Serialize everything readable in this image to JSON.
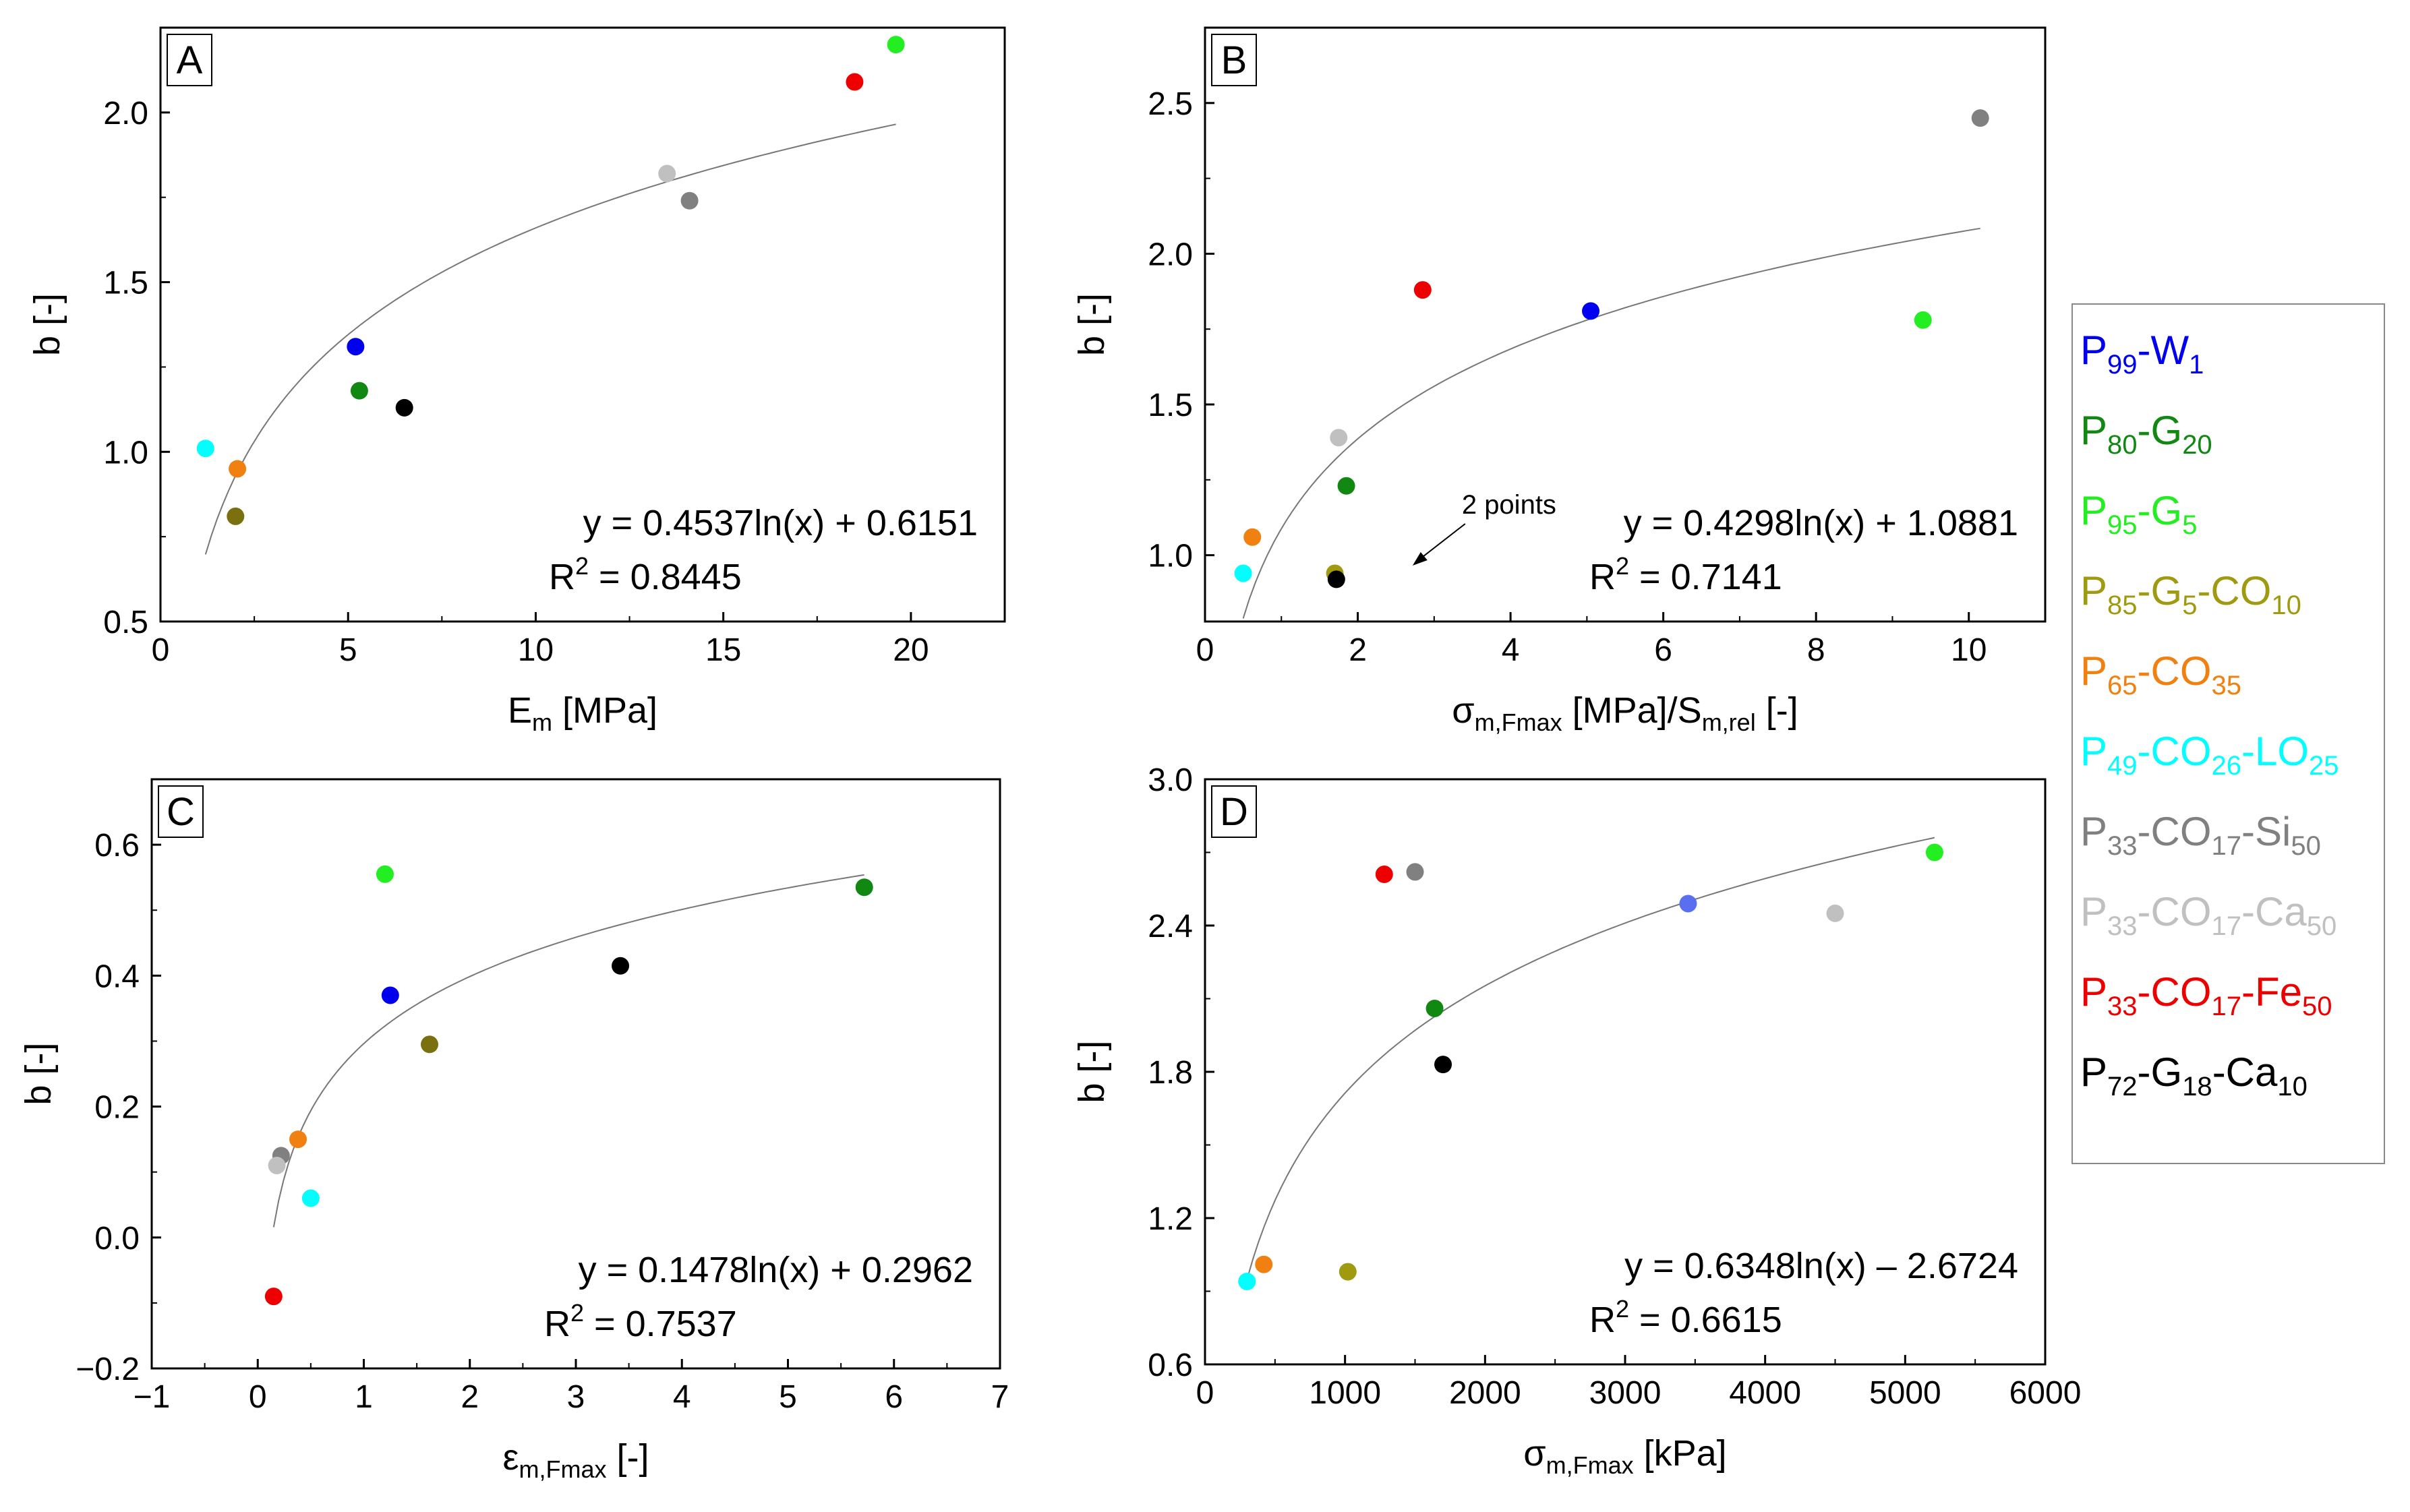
{
  "chart_data": [
    {
      "type": "scatter",
      "panel_label": "A",
      "xlabel": "E",
      "xlabel_sub": "m",
      "xlabel_tail": " [MPa]",
      "ylabel": "b [-]",
      "xlim": [
        0,
        22.5
      ],
      "ylim": [
        0.5,
        2.25
      ],
      "xticks": [
        0,
        5,
        10,
        15,
        20
      ],
      "xtick_labels": [
        "0",
        "5",
        "10",
        "15",
        "20"
      ],
      "yticks": [
        0.5,
        1.0,
        1.5,
        2.0
      ],
      "ytick_labels": [
        "0.5",
        "1.0",
        "1.5",
        "2.0"
      ],
      "points": [
        {
          "series": "P99-W1",
          "x": 5.2,
          "y": 1.31
        },
        {
          "series": "P80-G20",
          "x": 5.3,
          "y": 1.18
        },
        {
          "series": "P95-G5",
          "x": 19.6,
          "y": 2.2
        },
        {
          "series": "P85-G5-CO10",
          "x": 2.0,
          "y": 0.81
        },
        {
          "series": "P65-CO35",
          "x": 2.05,
          "y": 0.95
        },
        {
          "series": "P49-CO26-LO25",
          "x": 1.2,
          "y": 1.01
        },
        {
          "series": "P33-CO17-Si50",
          "x": 14.1,
          "y": 1.74
        },
        {
          "series": "P33-CO17-Ca50",
          "x": 13.5,
          "y": 1.82
        },
        {
          "series": "P33-CO17-Fe50",
          "x": 18.5,
          "y": 2.09
        },
        {
          "series": "P72-G18-Ca10",
          "x": 6.5,
          "y": 1.13
        }
      ],
      "fit": {
        "a": 0.4537,
        "b": 0.6151,
        "x_from": 1.2,
        "x_to": 19.6
      },
      "equation": "y = 0.4537ln(x) + 0.6151",
      "r2_label": "R",
      "r2_sup": "2",
      "r2_value": " = 0.8445"
    },
    {
      "type": "scatter",
      "panel_label": "B",
      "xlabel": "σ",
      "xlabel_sub": "m,Fmax",
      "xlabel_tail": " [MPa]/S",
      "xlabel_sub2": "m,rel",
      "xlabel_tail2": " [-]",
      "ylabel": "b [-]",
      "xlim": [
        0,
        11
      ],
      "ylim": [
        0.78,
        2.75
      ],
      "xticks": [
        0,
        2,
        4,
        6,
        8,
        10
      ],
      "xtick_labels": [
        "0",
        "2",
        "4",
        "6",
        "8",
        "10"
      ],
      "yticks": [
        1.0,
        1.5,
        2.0,
        2.5
      ],
      "ytick_labels": [
        "1.0",
        "1.5",
        "2.0",
        "2.5"
      ],
      "points": [
        {
          "series": "P99-W1",
          "x": 5.05,
          "y": 1.81
        },
        {
          "series": "P80-G20",
          "x": 1.85,
          "y": 1.23
        },
        {
          "series": "P95-G5",
          "x": 9.4,
          "y": 1.78
        },
        {
          "series": "P85-G5-CO10",
          "x": 1.7,
          "y": 0.94
        },
        {
          "series": "P65-CO35",
          "x": 0.62,
          "y": 1.06
        },
        {
          "series": "P49-CO26-LO25",
          "x": 0.5,
          "y": 0.94
        },
        {
          "series": "P33-CO17-Si50",
          "x": 10.15,
          "y": 2.45
        },
        {
          "series": "P33-CO17-Ca50",
          "x": 1.75,
          "y": 1.39
        },
        {
          "series": "P33-CO17-Fe50",
          "x": 2.85,
          "y": 1.88
        },
        {
          "series": "P72-G18-Ca10",
          "x": 1.72,
          "y": 0.92
        }
      ],
      "fit": {
        "a": 0.4298,
        "b": 1.0881,
        "x_from": 0.5,
        "x_to": 10.15
      },
      "equation": "y = 0.4298ln(x) + 1.0881",
      "r2_label": "R",
      "r2_sup": "2",
      "r2_value": " = 0.7141",
      "annotation": "2 points",
      "annotation_target": {
        "x": 2.7,
        "y": 0.97
      }
    },
    {
      "type": "scatter",
      "panel_label": "C",
      "xlabel": "ε",
      "xlabel_sub": "m,Fmax",
      "xlabel_tail": " [-]",
      "ylabel": "b [-]",
      "xlim": [
        -1,
        7
      ],
      "ylim": [
        -0.2,
        0.7
      ],
      "xticks": [
        -1,
        0,
        1,
        2,
        3,
        4,
        5,
        6,
        7
      ],
      "xtick_labels": [
        "−1",
        "0",
        "1",
        "2",
        "3",
        "4",
        "5",
        "6",
        "7"
      ],
      "yticks": [
        -0.2,
        0.0,
        0.2,
        0.4,
        0.6
      ],
      "ytick_labels": [
        "−0.2",
        "0.0",
        "0.2",
        "0.4",
        "0.6"
      ],
      "points": [
        {
          "series": "P99-W1",
          "x": 1.25,
          "y": 0.37
        },
        {
          "series": "P80-G20",
          "x": 5.72,
          "y": 0.535
        },
        {
          "series": "P95-G5",
          "x": 1.2,
          "y": 0.555
        },
        {
          "series": "P85-G5-CO10",
          "x": 1.62,
          "y": 0.295
        },
        {
          "series": "P65-CO35",
          "x": 0.38,
          "y": 0.15
        },
        {
          "series": "P49-CO26-LO25",
          "x": 0.5,
          "y": 0.06
        },
        {
          "series": "P33-CO17-Si50",
          "x": 0.22,
          "y": 0.125
        },
        {
          "series": "P33-CO17-Ca50",
          "x": 0.18,
          "y": 0.11
        },
        {
          "series": "P33-CO17-Fe50",
          "x": 0.15,
          "y": -0.09
        },
        {
          "series": "P72-G18-Ca10",
          "x": 3.42,
          "y": 0.415
        }
      ],
      "fit": {
        "a": 0.1478,
        "b": 0.2962,
        "x_from": 0.15,
        "x_to": 5.72
      },
      "equation": "y = 0.1478ln(x) + 0.2962",
      "r2_label": "R",
      "r2_sup": "2",
      "r2_value": " = 0.7537"
    },
    {
      "type": "scatter",
      "panel_label": "D",
      "xlabel": "σ",
      "xlabel_sub": "m,Fmax",
      "xlabel_tail": " [kPa]",
      "ylabel": "b [-]",
      "xlim": [
        0,
        6000
      ],
      "ylim": [
        0.6,
        3.0
      ],
      "xticks": [
        0,
        1000,
        2000,
        3000,
        4000,
        5000,
        6000
      ],
      "xtick_labels": [
        "0",
        "1000",
        "2000",
        "3000",
        "4000",
        "5000",
        "6000"
      ],
      "yticks": [
        0.6,
        1.2,
        1.8,
        2.4,
        3.0
      ],
      "ytick_labels": [
        "0.6",
        "1.2",
        "1.8",
        "2.4",
        "3.0"
      ],
      "points": [
        {
          "series": "P99-W1",
          "x": 3450,
          "y": 2.49
        },
        {
          "series": "P80-G20",
          "x": 1640,
          "y": 2.06
        },
        {
          "series": "P95-G5",
          "x": 5210,
          "y": 2.7
        },
        {
          "series": "P85-G5-CO10",
          "x": 1020,
          "y": 0.98
        },
        {
          "series": "P65-CO35",
          "x": 420,
          "y": 1.01
        },
        {
          "series": "P49-CO26-LO25",
          "x": 300,
          "y": 0.94
        },
        {
          "series": "P33-CO17-Si50",
          "x": 1500,
          "y": 2.62
        },
        {
          "series": "P33-CO17-Ca50",
          "x": 4500,
          "y": 2.45
        },
        {
          "series": "P33-CO17-Fe50",
          "x": 1280,
          "y": 2.61
        },
        {
          "series": "P72-G18-Ca10",
          "x": 1700,
          "y": 1.83
        }
      ],
      "fit": {
        "a": 0.6348,
        "b": -2.6724,
        "x_from": 300,
        "x_to": 5210
      },
      "equation": "y = 0.6348ln(x) – 2.6724",
      "r2_label": "R",
      "r2_sup": "2",
      "r2_value": " = 0.6615"
    }
  ],
  "legend": [
    {
      "id": "P99-W1",
      "color": "#0000ee",
      "parts": [
        [
          "P",
          ""
        ],
        [
          "99",
          "sub"
        ],
        [
          "-W",
          ""
        ],
        [
          "1",
          "sub"
        ]
      ]
    },
    {
      "id": "P80-G20",
      "color": "#118811",
      "parts": [
        [
          "P",
          ""
        ],
        [
          "80",
          "sub"
        ],
        [
          "-G",
          ""
        ],
        [
          "20",
          "sub"
        ]
      ]
    },
    {
      "id": "P95-G5",
      "color": "#22ee22",
      "parts": [
        [
          "P",
          ""
        ],
        [
          "95",
          "sub"
        ],
        [
          "-G",
          ""
        ],
        [
          "5",
          "sub"
        ]
      ]
    },
    {
      "id": "P85-G5-CO10",
      "color": "#a09a10",
      "parts": [
        [
          "P",
          ""
        ],
        [
          "85",
          "sub"
        ],
        [
          "-G",
          ""
        ],
        [
          "5",
          "sub"
        ],
        [
          "-CO",
          ""
        ],
        [
          "10",
          "sub"
        ]
      ]
    },
    {
      "id": "P65-CO35",
      "color": "#f08010",
      "parts": [
        [
          "P",
          ""
        ],
        [
          "65",
          "sub"
        ],
        [
          "-CO",
          ""
        ],
        [
          "35",
          "sub"
        ]
      ]
    },
    {
      "id": "P49-CO26-LO25",
      "color": "#00ffff",
      "parts": [
        [
          "P",
          ""
        ],
        [
          "49",
          "sub"
        ],
        [
          "-CO",
          ""
        ],
        [
          "26",
          "sub"
        ],
        [
          "-LO",
          ""
        ],
        [
          "25",
          "sub"
        ]
      ]
    },
    {
      "id": "P33-CO17-Si50",
      "color": "#808080",
      "parts": [
        [
          "P",
          ""
        ],
        [
          "33",
          "sub"
        ],
        [
          "-CO",
          ""
        ],
        [
          "17",
          "sub"
        ],
        [
          "-Si",
          ""
        ],
        [
          "50",
          "sub"
        ]
      ]
    },
    {
      "id": "P33-CO17-Ca50",
      "color": "#c0c0c0",
      "parts": [
        [
          "P",
          ""
        ],
        [
          "33",
          "sub"
        ],
        [
          "-CO",
          ""
        ],
        [
          "17",
          "sub"
        ],
        [
          "-Ca",
          ""
        ],
        [
          "50",
          "sub"
        ]
      ]
    },
    {
      "id": "P33-CO17-Fe50",
      "color": "#ee0000",
      "parts": [
        [
          "P",
          ""
        ],
        [
          "33",
          "sub"
        ],
        [
          "-CO",
          ""
        ],
        [
          "17",
          "sub"
        ],
        [
          "-Fe",
          ""
        ],
        [
          "50",
          "sub"
        ]
      ]
    },
    {
      "id": "P72-G18-Ca10",
      "color": "#000000",
      "parts": [
        [
          "P",
          ""
        ],
        [
          "72",
          "sub"
        ],
        [
          "-G",
          ""
        ],
        [
          "18",
          "sub"
        ],
        [
          "-Ca",
          ""
        ],
        [
          "10",
          "sub"
        ]
      ]
    }
  ],
  "overrides": {
    "P85-G5-CO10_panelC": "#7a7010",
    "P85-G5-CO10_panelA": "#7a7010",
    "P99-W1_panelD": "#5a6ef0"
  }
}
